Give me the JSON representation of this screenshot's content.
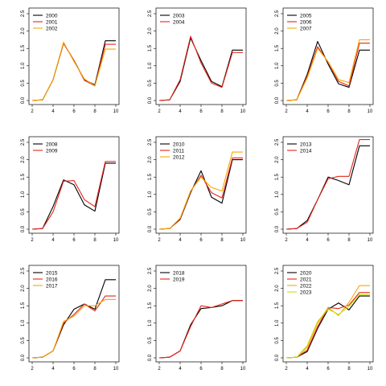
{
  "colors": {
    "c1": "#000000",
    "c2": "#e8231a",
    "c3": "#f6a800",
    "c4": "#c8e000"
  },
  "chart_data": [
    {
      "type": "line",
      "x": [
        2,
        3,
        4,
        5,
        6,
        7,
        8,
        9,
        10
      ],
      "xlim": [
        2,
        10
      ],
      "ylim": [
        0,
        2.5
      ],
      "xticks": [
        "2",
        "4",
        "6",
        "8",
        "10"
      ],
      "yticks": [
        "0.0",
        "0.5",
        "1.0",
        "1.5",
        "2.0",
        "2.5"
      ],
      "legend_position": "top-left",
      "series": [
        {
          "name": "2000",
          "color": "#000000",
          "values": [
            0.0,
            0.02,
            0.6,
            1.65,
            1.15,
            0.6,
            0.45,
            1.72,
            1.72
          ]
        },
        {
          "name": "2001",
          "color": "#e8231a",
          "values": [
            0.0,
            0.02,
            0.6,
            1.65,
            1.15,
            0.58,
            0.42,
            1.62,
            1.62
          ]
        },
        {
          "name": "2002",
          "color": "#f6a800",
          "values": [
            0.0,
            0.02,
            0.6,
            1.68,
            1.12,
            0.62,
            0.42,
            1.48,
            1.48
          ]
        }
      ]
    },
    {
      "type": "line",
      "x": [
        2,
        3,
        4,
        5,
        6,
        7,
        8,
        9,
        10
      ],
      "xlim": [
        2,
        10
      ],
      "ylim": [
        0,
        2.5
      ],
      "xticks": [
        "2",
        "4",
        "6",
        "8",
        "10"
      ],
      "yticks": [
        "0.0",
        "0.5",
        "1.0",
        "1.5",
        "2.0",
        "2.5"
      ],
      "legend_position": "top-left",
      "series": [
        {
          "name": "2003",
          "color": "#000000",
          "values": [
            0.0,
            0.02,
            0.55,
            1.8,
            1.15,
            0.55,
            0.4,
            1.45,
            1.45
          ]
        },
        {
          "name": "2004",
          "color": "#e8231a",
          "values": [
            0.0,
            0.02,
            0.6,
            1.85,
            1.08,
            0.5,
            0.38,
            1.38,
            1.38
          ]
        }
      ]
    },
    {
      "type": "line",
      "x": [
        2,
        3,
        4,
        5,
        6,
        7,
        8,
        9,
        10
      ],
      "xlim": [
        2,
        10
      ],
      "ylim": [
        0,
        2.5
      ],
      "xticks": [
        "2",
        "4",
        "6",
        "8",
        "10"
      ],
      "yticks": [
        "0.0",
        "0.5",
        "1.0",
        "1.5",
        "2.0",
        "2.5"
      ],
      "legend_position": "top-left",
      "series": [
        {
          "name": "2005",
          "color": "#000000",
          "values": [
            0.0,
            0.02,
            0.75,
            1.7,
            1.05,
            0.48,
            0.38,
            1.45,
            1.45
          ]
        },
        {
          "name": "2006",
          "color": "#e8231a",
          "values": [
            0.0,
            0.02,
            0.7,
            1.55,
            1.1,
            0.55,
            0.42,
            1.65,
            1.65
          ]
        },
        {
          "name": "2007",
          "color": "#f6a800",
          "values": [
            0.0,
            0.02,
            0.65,
            1.5,
            1.12,
            0.6,
            0.52,
            1.75,
            1.75
          ]
        }
      ]
    },
    {
      "type": "line",
      "x": [
        2,
        3,
        4,
        5,
        6,
        7,
        8,
        9,
        10
      ],
      "xlim": [
        2,
        10
      ],
      "ylim": [
        0,
        2.5
      ],
      "xticks": [
        "2",
        "4",
        "6",
        "8",
        "10"
      ],
      "yticks": [
        "0.0",
        "0.5",
        "1.0",
        "1.5",
        "2.0",
        "2.5"
      ],
      "legend_position": "top-left",
      "series": [
        {
          "name": "2008",
          "color": "#000000",
          "values": [
            0.0,
            0.02,
            0.65,
            1.42,
            1.28,
            0.7,
            0.52,
            1.9,
            1.9
          ]
        },
        {
          "name": "2009",
          "color": "#e8231a",
          "values": [
            0.0,
            0.02,
            0.5,
            1.38,
            1.4,
            0.85,
            0.65,
            1.95,
            1.95
          ]
        }
      ]
    },
    {
      "type": "line",
      "x": [
        2,
        3,
        4,
        5,
        6,
        7,
        8,
        9,
        10
      ],
      "xlim": [
        2,
        10
      ],
      "ylim": [
        0,
        2.5
      ],
      "xticks": [
        "2",
        "4",
        "6",
        "8",
        "10"
      ],
      "yticks": [
        "0.0",
        "0.5",
        "1.0",
        "1.5",
        "2.0",
        "2.5"
      ],
      "legend_position": "top-left",
      "series": [
        {
          "name": "2010",
          "color": "#000000",
          "values": [
            0.0,
            0.02,
            0.28,
            1.05,
            1.68,
            0.92,
            0.75,
            2.0,
            2.0
          ]
        },
        {
          "name": "2011",
          "color": "#e8231a",
          "values": [
            0.0,
            0.02,
            0.3,
            1.08,
            1.55,
            1.05,
            0.9,
            2.05,
            2.05
          ]
        },
        {
          "name": "2012",
          "color": "#f6a800",
          "values": [
            0.0,
            0.02,
            0.32,
            1.1,
            1.5,
            1.2,
            1.1,
            2.22,
            2.22
          ]
        }
      ]
    },
    {
      "type": "line",
      "x": [
        2,
        3,
        4,
        5,
        6,
        7,
        8,
        9,
        10
      ],
      "xlim": [
        2,
        10
      ],
      "ylim": [
        0,
        2.5
      ],
      "xticks": [
        "2",
        "4",
        "6",
        "8",
        "10"
      ],
      "yticks": [
        "0.0",
        "0.5",
        "1.0",
        "1.5",
        "2.0",
        "2.5"
      ],
      "legend_position": "top-left",
      "series": [
        {
          "name": "2013",
          "color": "#000000",
          "values": [
            0.0,
            0.02,
            0.25,
            0.85,
            1.5,
            1.4,
            1.28,
            2.4,
            2.4
          ]
        },
        {
          "name": "2014",
          "color": "#e8231a",
          "values": [
            0.0,
            0.02,
            0.2,
            0.85,
            1.45,
            1.52,
            1.52,
            2.58,
            2.58
          ]
        }
      ]
    },
    {
      "type": "line",
      "x": [
        2,
        3,
        4,
        5,
        6,
        7,
        8,
        9,
        10
      ],
      "xlim": [
        2,
        10
      ],
      "ylim": [
        0,
        2.5
      ],
      "xticks": [
        "2",
        "4",
        "6",
        "8",
        "10"
      ],
      "yticks": [
        "0.0",
        "0.5",
        "1.0",
        "1.5",
        "2.0",
        "2.5"
      ],
      "legend_position": "top-left",
      "series": [
        {
          "name": "2015",
          "color": "#000000",
          "values": [
            0.0,
            0.02,
            0.2,
            0.95,
            1.4,
            1.55,
            1.4,
            2.25,
            2.25
          ]
        },
        {
          "name": "2016",
          "color": "#e8231a",
          "values": [
            0.0,
            0.02,
            0.2,
            1.0,
            1.25,
            1.55,
            1.35,
            1.78,
            1.78
          ]
        },
        {
          "name": "2017",
          "color": "#f6a800",
          "values": [
            0.0,
            0.02,
            0.2,
            1.05,
            1.2,
            1.5,
            1.5,
            1.68,
            1.68
          ]
        }
      ]
    },
    {
      "type": "line",
      "x": [
        2,
        3,
        4,
        5,
        6,
        7,
        8,
        9,
        10
      ],
      "xlim": [
        2,
        10
      ],
      "ylim": [
        0,
        2.5
      ],
      "xticks": [
        "2",
        "4",
        "6",
        "8",
        "10"
      ],
      "yticks": [
        "0.0",
        "0.5",
        "1.0",
        "1.5",
        "2.0",
        "2.5"
      ],
      "legend_position": "top-left",
      "series": [
        {
          "name": "2018",
          "color": "#000000",
          "values": [
            0.0,
            0.02,
            0.2,
            0.95,
            1.42,
            1.45,
            1.5,
            1.65,
            1.65
          ]
        },
        {
          "name": "2019",
          "color": "#e8231a",
          "values": [
            0.0,
            0.02,
            0.2,
            0.9,
            1.5,
            1.45,
            1.55,
            1.65,
            1.65
          ]
        }
      ]
    },
    {
      "type": "line",
      "x": [
        2,
        3,
        4,
        5,
        6,
        7,
        8,
        9,
        10
      ],
      "xlim": [
        2,
        10
      ],
      "ylim": [
        0,
        2.5
      ],
      "xticks": [
        "2",
        "4",
        "6",
        "8",
        "10"
      ],
      "yticks": [
        "0.0",
        "0.5",
        "1.0",
        "1.5",
        "2.0",
        "2.5"
      ],
      "legend_position": "top-left",
      "series": [
        {
          "name": "2020",
          "color": "#000000",
          "values": [
            0.0,
            0.02,
            0.18,
            0.85,
            1.4,
            1.58,
            1.38,
            1.78,
            1.78
          ]
        },
        {
          "name": "2021",
          "color": "#e8231a",
          "values": [
            0.0,
            0.02,
            0.22,
            0.9,
            1.45,
            1.42,
            1.52,
            1.88,
            1.88
          ]
        },
        {
          "name": "2022",
          "color": "#f6a800",
          "values": [
            0.0,
            0.02,
            0.3,
            1.0,
            1.45,
            1.22,
            1.6,
            2.08,
            2.08
          ]
        },
        {
          "name": "2023",
          "color": "#c8e000",
          "values": [
            0.0,
            0.02,
            0.35,
            1.05,
            1.4,
            1.25,
            1.48,
            1.82,
            1.82
          ]
        }
      ]
    }
  ]
}
